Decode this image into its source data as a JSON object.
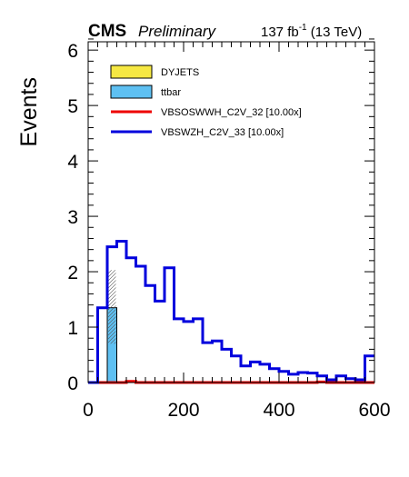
{
  "header": {
    "experiment": "CMS",
    "status": "Preliminary",
    "lumi_value": "137 fb",
    "lumi_exp": "-1",
    "lumi_energy": " (13 TeV)"
  },
  "chart_data": {
    "type": "bar",
    "title": "",
    "xlabel": "",
    "ylabel": "Events",
    "xlim": [
      0,
      600
    ],
    "ylim": [
      0,
      6.15
    ],
    "x_ticks": [
      0,
      200,
      400,
      600
    ],
    "y_ticks": [
      0,
      1,
      2,
      3,
      4,
      5,
      6
    ],
    "legend_position": "top-left",
    "legend": [
      {
        "label": "DYJETS",
        "style": "box",
        "color": "#f6e843"
      },
      {
        "label": "ttbar",
        "style": "box",
        "color": "#5ec0f2"
      },
      {
        "label": "VBSOSWWH_C2V_32 [10.00x]",
        "style": "line",
        "color": "#ee0000"
      },
      {
        "label": "VBSWZH_C2V_33 [10.00x]",
        "style": "line",
        "color": "#0000dd"
      }
    ],
    "stacked": [
      {
        "name": "ttbar",
        "color": "#5ec0f2",
        "bins": [
          [
            40,
            60,
            1.35
          ]
        ]
      }
    ],
    "uncertainty": [
      [
        40,
        60,
        0.7,
        2.03
      ]
    ],
    "series": [
      {
        "name": "VBSOSWWH_C2V_32 [10.00x]",
        "color": "#ee0000",
        "edges": [
          0,
          20,
          40,
          60,
          80,
          100,
          120,
          140,
          160,
          180,
          200,
          220,
          240,
          260,
          280,
          300,
          320,
          340,
          360,
          380,
          400,
          420,
          440,
          460,
          480,
          500,
          520,
          540,
          560,
          580,
          600
        ],
        "values": [
          0,
          0,
          0,
          0,
          0.02,
          0,
          0,
          0,
          0,
          0,
          0,
          0,
          0,
          0,
          0,
          0,
          0,
          0,
          0,
          0,
          0,
          0,
          0,
          0,
          0.01,
          0,
          0,
          0,
          0,
          0
        ]
      },
      {
        "name": "VBSWZH_C2V_33 [10.00x]",
        "color": "#0000dd",
        "edges": [
          0,
          20,
          40,
          60,
          80,
          100,
          120,
          140,
          160,
          180,
          200,
          220,
          240,
          260,
          280,
          300,
          320,
          340,
          360,
          380,
          400,
          420,
          440,
          460,
          480,
          500,
          520,
          540,
          560,
          580,
          600
        ],
        "values": [
          0,
          1.35,
          2.45,
          2.55,
          2.25,
          2.1,
          1.75,
          1.47,
          2.07,
          1.15,
          1.1,
          1.15,
          0.72,
          0.75,
          0.6,
          0.48,
          0.3,
          0.37,
          0.33,
          0.25,
          0.2,
          0.15,
          0.18,
          0.17,
          0.12,
          0.05,
          0.12,
          0.07,
          0.05,
          0.48
        ]
      }
    ]
  }
}
